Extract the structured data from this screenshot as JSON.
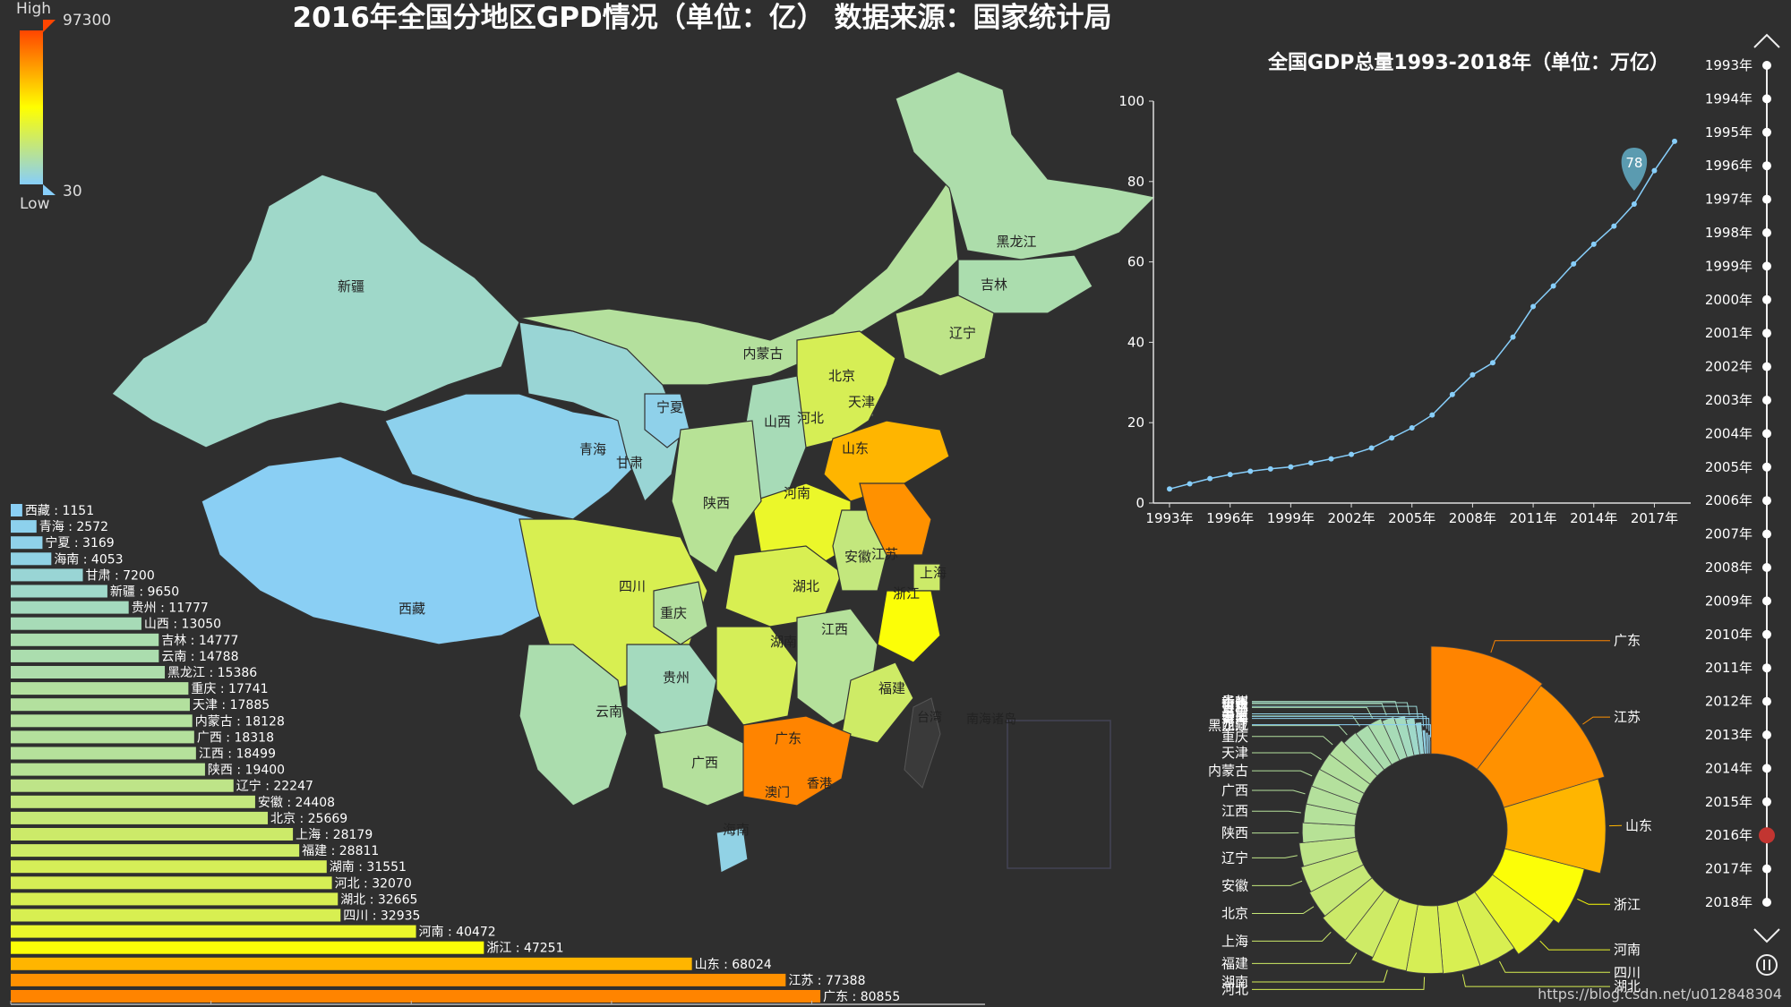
{
  "title": "2016年全国分地区GPD情况（单位：亿） 数据来源：国家统计局",
  "visual_map": {
    "high_label": "High",
    "low_label": "Low",
    "max": "97300",
    "min": "30",
    "colors": [
      "#87cefa",
      "#ffff00",
      "#ff4500"
    ]
  },
  "watermark": "https://blog.csdn.net/u012848304",
  "chart_data": [
    {
      "type": "map",
      "map": "china",
      "region_labels": [
        "新疆",
        "西藏",
        "青海",
        "甘肃",
        "宁夏",
        "内蒙古",
        "黑龙江",
        "吉林",
        "辽宁",
        "北京",
        "天津",
        "河北",
        "山西",
        "山东",
        "河南",
        "陕西",
        "四川",
        "重庆",
        "湖北",
        "安徽",
        "江苏",
        "上海",
        "浙江",
        "湖南",
        "江西",
        "福建",
        "贵州",
        "云南",
        "广西",
        "广东",
        "澳门",
        "香港",
        "海南",
        "台湾",
        "南海诸岛"
      ]
    },
    {
      "type": "bar",
      "orientation": "horizontal",
      "categories": [
        "西藏",
        "青海",
        "宁夏",
        "海南",
        "甘肃",
        "新疆",
        "贵州",
        "山西",
        "吉林",
        "云南",
        "黑龙江",
        "重庆",
        "天津",
        "内蒙古",
        "广西",
        "江西",
        "陕西",
        "辽宁",
        "安徽",
        "北京",
        "上海",
        "福建",
        "湖南",
        "河北",
        "湖北",
        "四川",
        "河南",
        "浙江",
        "山东",
        "江苏",
        "广东"
      ],
      "values": [
        1151,
        2572,
        3169,
        4053,
        7200,
        9650,
        11777,
        13050,
        14777,
        14788,
        15386,
        17741,
        17885,
        18128,
        18318,
        18499,
        19400,
        22247,
        24408,
        25669,
        28179,
        28811,
        31551,
        32070,
        32665,
        32935,
        40472,
        47251,
        68024,
        77388,
        80855
      ],
      "xlim": [
        0,
        97300
      ]
    },
    {
      "type": "line",
      "title": "全国GDP总量1993-2018年（单位：万亿）",
      "x": [
        "1993年",
        "1994年",
        "1995年",
        "1996年",
        "1997年",
        "1998年",
        "1999年",
        "2000年",
        "2001年",
        "2002年",
        "2003年",
        "2004年",
        "2005年",
        "2006年",
        "2007年",
        "2008年",
        "2009年",
        "2010年",
        "2011年",
        "2012年",
        "2013年",
        "2014年",
        "2015年",
        "2016年",
        "2017年",
        "2018年"
      ],
      "y": [
        3.5,
        4.8,
        6.1,
        7.1,
        7.9,
        8.5,
        9.0,
        10.0,
        11.0,
        12.1,
        13.7,
        16.2,
        18.7,
        21.9,
        27.0,
        31.9,
        34.9,
        41.3,
        48.9,
        54.0,
        59.5,
        64.4,
        68.9,
        74.4,
        82.7,
        90.0
      ],
      "x_ticks": [
        "1993年",
        "1996年",
        "1999年",
        "2002年",
        "2005年",
        "2008年",
        "2011年",
        "2014年",
        "2017年"
      ],
      "y_ticks": [
        "0",
        "20",
        "40",
        "60",
        "80",
        "100"
      ],
      "ylim": [
        0,
        100
      ],
      "marker": {
        "x": "2016年",
        "label": "78"
      }
    },
    {
      "type": "pie",
      "style": "rose-donut",
      "categories": [
        "广东",
        "江苏",
        "山东",
        "浙江",
        "河南",
        "四川",
        "湖北",
        "河北",
        "湖南",
        "福建",
        "上海",
        "北京",
        "安徽",
        "辽宁",
        "陕西",
        "江西",
        "广西",
        "内蒙古",
        "天津",
        "重庆",
        "黑龙江",
        "云南",
        "吉林",
        "山西",
        "贵州",
        "新疆",
        "甘肃",
        "海南",
        "宁夏",
        "青海",
        "西藏"
      ],
      "values": [
        80855,
        77388,
        68024,
        47251,
        40472,
        32935,
        32665,
        32070,
        31551,
        28811,
        28179,
        25669,
        24408,
        22247,
        19400,
        18499,
        18318,
        18128,
        17885,
        17741,
        15386,
        14788,
        14777,
        13050,
        11777,
        9650,
        7200,
        4053,
        3169,
        2572,
        1151
      ]
    },
    {
      "type": "timeline",
      "items": [
        "1993年",
        "1994年",
        "1995年",
        "1996年",
        "1997年",
        "1998年",
        "1999年",
        "2000年",
        "2001年",
        "2002年",
        "2003年",
        "2004年",
        "2005年",
        "2006年",
        "2007年",
        "2008年",
        "2009年",
        "2010年",
        "2011年",
        "2012年",
        "2013年",
        "2014年",
        "2015年",
        "2016年",
        "2017年",
        "2018年"
      ],
      "current": "2016年"
    }
  ]
}
